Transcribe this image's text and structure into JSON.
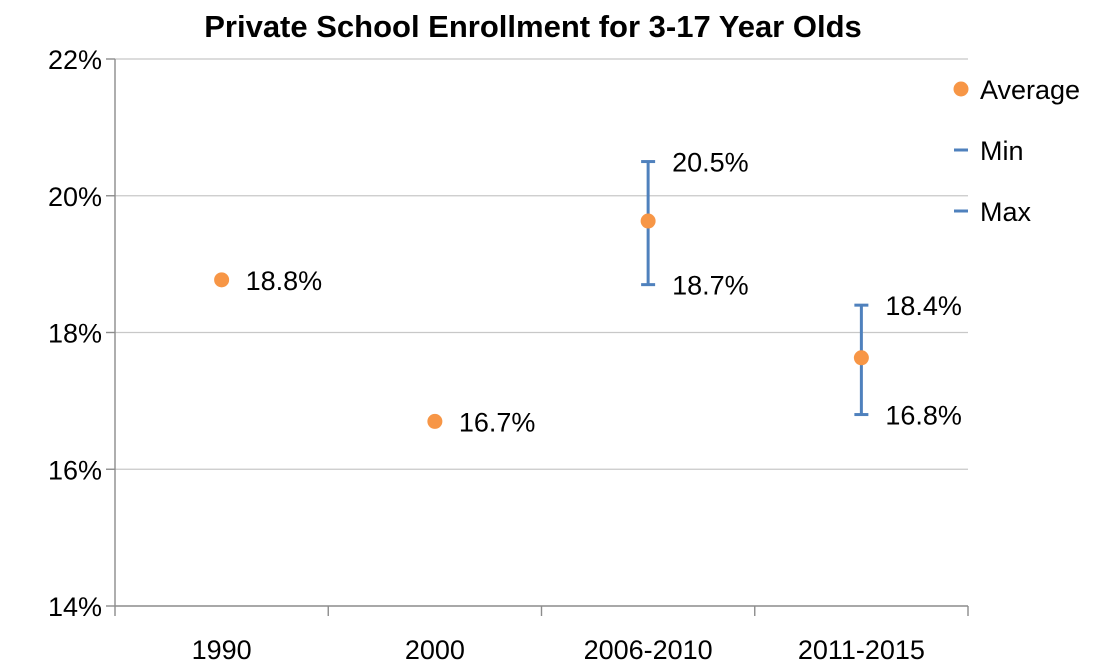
{
  "chart_data": {
    "type": "scatter",
    "title": "Private School Enrollment for 3-17 Year Olds",
    "xlabel": "",
    "ylabel": "",
    "categories": [
      "1990",
      "2000",
      "2006-2010",
      "2011-2015"
    ],
    "y_ticks": [
      "14%",
      "16%",
      "18%",
      "20%",
      "22%"
    ],
    "ylim": [
      14,
      22
    ],
    "y_unit": "%",
    "grid": true,
    "legend_position": "right",
    "series": [
      {
        "name": "Average",
        "values": [
          18.77,
          16.7,
          19.63,
          17.63
        ],
        "color": "#F79646",
        "marker": "circle"
      },
      {
        "name": "Min",
        "values": [
          null,
          null,
          18.7,
          16.8
        ],
        "color": "#4F81BD",
        "marker": "dash"
      },
      {
        "name": "Max",
        "values": [
          null,
          null,
          20.5,
          18.4
        ],
        "color": "#4F81BD",
        "marker": "dash"
      }
    ],
    "data_labels": [
      {
        "category": "1990",
        "series": "Average",
        "text": "18.8%"
      },
      {
        "category": "2000",
        "series": "Average",
        "text": "16.7%"
      },
      {
        "category": "2006-2010",
        "series": "Max",
        "text": "20.5%"
      },
      {
        "category": "2006-2010",
        "series": "Min",
        "text": "18.7%"
      },
      {
        "category": "2011-2015",
        "series": "Max",
        "text": "18.4%"
      },
      {
        "category": "2011-2015",
        "series": "Min",
        "text": "16.8%"
      }
    ]
  }
}
